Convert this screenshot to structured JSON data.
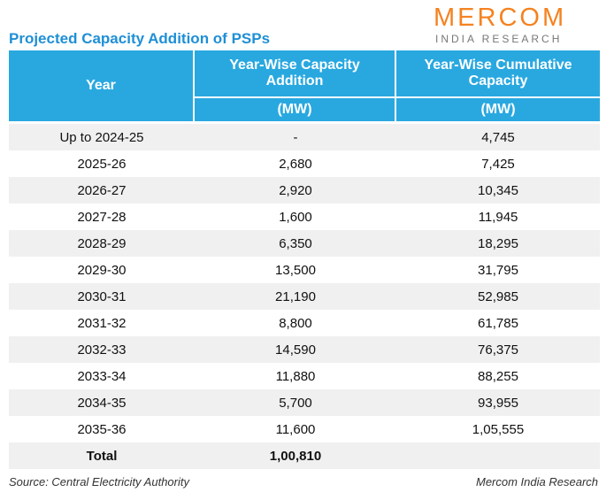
{
  "header": {
    "title": "Projected Capacity Addition of PSPs",
    "logo": {
      "name": "MERCOM",
      "sub": "INDIA RESEARCH"
    }
  },
  "table": {
    "columns": [
      {
        "label": "Year"
      },
      {
        "label": "Year-Wise Capacity Addition",
        "unit": "(MW)"
      },
      {
        "label": "Year-Wise Cumulative Capacity",
        "unit": "(MW)"
      }
    ],
    "rows": [
      [
        "Up to 2024-25",
        "-",
        "4,745"
      ],
      [
        "2025-26",
        "2,680",
        "7,425"
      ],
      [
        "2026-27",
        "2,920",
        "10,345"
      ],
      [
        "2027-28",
        "1,600",
        "11,945"
      ],
      [
        "2028-29",
        "6,350",
        "18,295"
      ],
      [
        "2029-30",
        "13,500",
        "31,795"
      ],
      [
        "2030-31",
        "21,190",
        "52,985"
      ],
      [
        "2031-32",
        "8,800",
        "61,785"
      ],
      [
        "2032-33",
        "14,590",
        "76,375"
      ],
      [
        "2033-34",
        "11,880",
        "88,255"
      ],
      [
        "2034-35",
        "5,700",
        "93,955"
      ],
      [
        "2035-36",
        "11,600",
        "1,05,555"
      ]
    ],
    "total": [
      "Total",
      "1,00,810"
    ]
  },
  "footer": {
    "source": "Source: Central Electricity Authority",
    "credit": "Mercom India Research"
  }
}
